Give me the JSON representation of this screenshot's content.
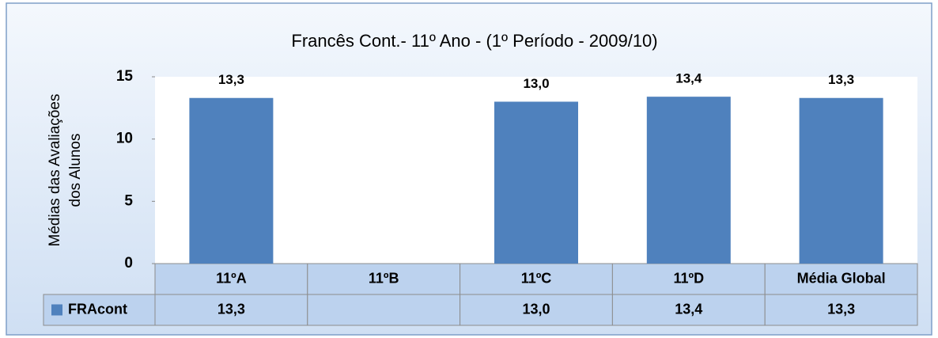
{
  "chart_data": {
    "type": "bar",
    "title": "Francês Cont.- 11º Ano - (1º Período - 2009/10)",
    "ylabel": [
      "Médias das Avaliações",
      "dos Alunos"
    ],
    "categories": [
      "11ºA",
      "11ºB",
      "11ºC",
      "11ºD",
      "Média Global"
    ],
    "series": [
      {
        "name": "FRAcont",
        "color": "#4f81bd",
        "values": [
          13.3,
          null,
          13.0,
          13.4,
          13.3
        ],
        "value_labels": [
          "13,3",
          null,
          "13,0",
          "13,4",
          "13,3"
        ]
      }
    ],
    "ylim": [
      0,
      15
    ],
    "yticks": [
      0,
      5,
      10,
      15
    ],
    "grid": false
  }
}
